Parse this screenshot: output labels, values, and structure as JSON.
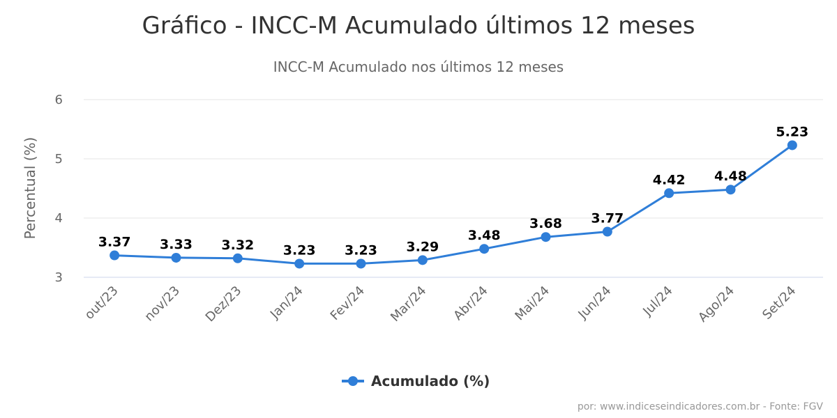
{
  "chart_data": {
    "type": "line",
    "title": "Gráfico - INCC-M Acumulado últimos 12 meses",
    "subtitle": "INCC-M Acumulado nos últimos 12 meses",
    "ylabel": "Percentual (%)",
    "xlabel": "",
    "ylim": [
      3,
      6
    ],
    "yticks": [
      3,
      4,
      5,
      6
    ],
    "grid": true,
    "legend_position": "bottom-center",
    "categories": [
      "out/23",
      "nov/23",
      "Dez/23",
      "Jan/24",
      "Fev/24",
      "Mar/24",
      "Abr/24",
      "Mai/24",
      "Jun/24",
      "Jul/24",
      "Ago/24",
      "Set/24"
    ],
    "series": [
      {
        "name": "Acumulado (%)",
        "color": "#2f7ed8",
        "values": [
          3.37,
          3.33,
          3.32,
          3.23,
          3.23,
          3.29,
          3.48,
          3.68,
          3.77,
          4.42,
          4.48,
          5.23
        ]
      }
    ]
  },
  "credit": "por: www.indiceseindicadores.com.br - Fonte: FGV"
}
